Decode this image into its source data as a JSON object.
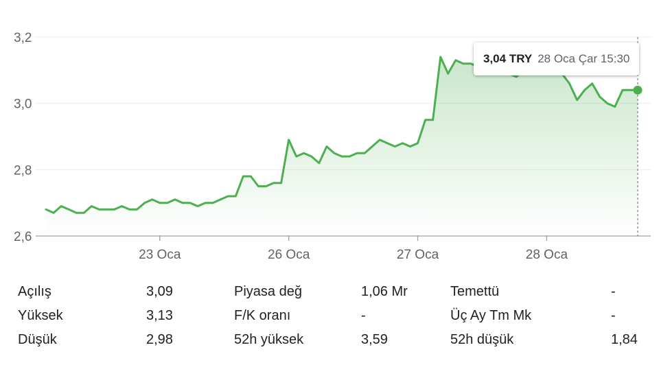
{
  "chart_data": {
    "type": "area",
    "currency": "TRY",
    "ylim": [
      2.6,
      3.2
    ],
    "yticks": [
      "2,6",
      "2,8",
      "3,0",
      "3,2"
    ],
    "yticks_values": [
      2.6,
      2.8,
      3.0,
      3.2
    ],
    "xticks": [
      {
        "label": "23 Oca",
        "index": 15
      },
      {
        "label": "26 Oca",
        "index": 32
      },
      {
        "label": "27 Oca",
        "index": 49
      },
      {
        "label": "28 Oca",
        "index": 66
      }
    ],
    "values": [
      2.68,
      2.67,
      2.69,
      2.68,
      2.67,
      2.67,
      2.69,
      2.68,
      2.68,
      2.68,
      2.69,
      2.68,
      2.68,
      2.7,
      2.71,
      2.7,
      2.7,
      2.71,
      2.7,
      2.7,
      2.69,
      2.7,
      2.7,
      2.71,
      2.72,
      2.72,
      2.78,
      2.78,
      2.75,
      2.75,
      2.76,
      2.76,
      2.89,
      2.84,
      2.85,
      2.84,
      2.82,
      2.87,
      2.85,
      2.84,
      2.84,
      2.85,
      2.85,
      2.87,
      2.89,
      2.88,
      2.87,
      2.88,
      2.87,
      2.88,
      2.95,
      2.95,
      3.14,
      3.09,
      3.13,
      3.12,
      3.12,
      3.11,
      3.1,
      3.09,
      3.1,
      3.09,
      3.08,
      3.1,
      3.1,
      3.11,
      3.11,
      3.1,
      3.09,
      3.06,
      3.01,
      3.04,
      3.06,
      3.02,
      3.0,
      2.99,
      3.04,
      3.04,
      3.04
    ],
    "line_color": "#4caf50",
    "grid": true,
    "tooltip": {
      "price": "3,04 TRY",
      "time": "28 Oca Çar 15:30"
    }
  },
  "stats": {
    "col1": [
      {
        "label": "Açılış",
        "value": "3,09"
      },
      {
        "label": "Yüksek",
        "value": "3,13"
      },
      {
        "label": "Düşük",
        "value": "2,98"
      }
    ],
    "col2": [
      {
        "label": "Piyasa değ",
        "value": "1,06 Mr"
      },
      {
        "label": "F/K oranı",
        "value": "-"
      },
      {
        "label": "52h yüksek",
        "value": "3,59"
      }
    ],
    "col3": [
      {
        "label": "Temettü",
        "value": "-"
      },
      {
        "label": "Üç Ay Tm Mk",
        "value": "-"
      },
      {
        "label": "52h düşük",
        "value": "1,84"
      }
    ]
  }
}
